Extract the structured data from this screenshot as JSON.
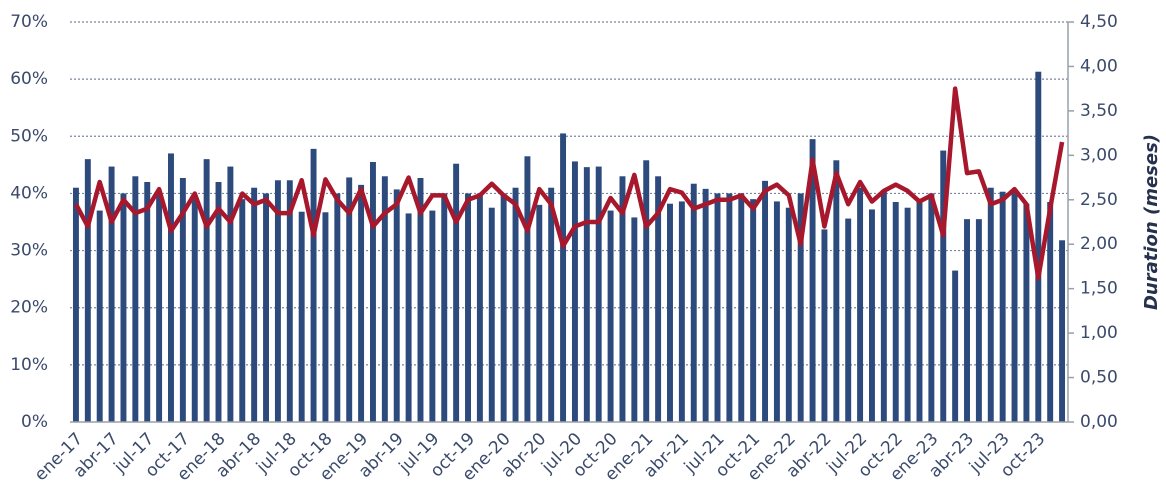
{
  "chart_data": {
    "type": "combo",
    "y2label": "Duration (meses)",
    "categories": [
      "ene-17",
      null,
      null,
      "abr-17",
      null,
      null,
      "jul-17",
      null,
      null,
      "oct-17",
      null,
      null,
      "ene-18",
      null,
      null,
      "abr-18",
      null,
      null,
      "jul-18",
      null,
      null,
      "oct-18",
      null,
      null,
      "ene-19",
      null,
      null,
      "abr-19",
      null,
      null,
      "jul-19",
      null,
      null,
      "oct-19",
      null,
      null,
      "ene-20",
      null,
      null,
      "abr-20",
      null,
      null,
      "jul-20",
      null,
      null,
      "oct-20",
      null,
      null,
      "ene-21",
      null,
      null,
      "abr-21",
      null,
      null,
      "jul-21",
      null,
      null,
      "oct-21",
      null,
      null,
      "ene-22",
      null,
      null,
      "abr-22",
      null,
      null,
      "jul-22",
      null,
      null,
      "oct-22",
      null,
      null,
      "ene-23",
      null,
      null,
      "abr-23",
      null,
      null,
      "jul-23",
      null,
      null,
      "oct-23",
      null,
      null
    ],
    "series": [
      {
        "type": "bar",
        "color": "#2d4a7c",
        "values": [
          41,
          46,
          37,
          44.7,
          40,
          43,
          42,
          40.5,
          47,
          42.7,
          39,
          46,
          42,
          44.7,
          39,
          41,
          40,
          42.3,
          42.3,
          36.8,
          47.8,
          36.7,
          40,
          42.8,
          41.5,
          45.5,
          43,
          40.7,
          36.5,
          42.7,
          37,
          40,
          45.2,
          40,
          40,
          37.5,
          40,
          41,
          46.5,
          38,
          41,
          50.5,
          45.6,
          44.6,
          44.7,
          37,
          43,
          35.8,
          45.8,
          43,
          38.2,
          38.6,
          41.7,
          40.8,
          40,
          40,
          40,
          39,
          42.2,
          38.6,
          37.5,
          40,
          49.5,
          33.7,
          45.8,
          35.6,
          41,
          37.2,
          40.6,
          38.5,
          37.5,
          38.7,
          40,
          47.5,
          26.5,
          35.5,
          35.5,
          41,
          40.3,
          40.5,
          38.2,
          61.3,
          38.5,
          31.8
        ]
      },
      {
        "type": "line",
        "axis": "y2",
        "color": "#a8182c",
        "values": [
          2.45,
          2.2,
          2.7,
          2.25,
          2.5,
          2.35,
          2.4,
          2.62,
          2.15,
          2.35,
          2.57,
          2.2,
          2.4,
          2.25,
          2.57,
          2.45,
          2.5,
          2.35,
          2.35,
          2.72,
          2.1,
          2.73,
          2.5,
          2.35,
          2.62,
          2.2,
          2.35,
          2.45,
          2.75,
          2.35,
          2.55,
          2.55,
          2.25,
          2.5,
          2.55,
          2.68,
          2.55,
          2.45,
          2.15,
          2.62,
          2.45,
          1.98,
          2.2,
          2.25,
          2.25,
          2.52,
          2.35,
          2.78,
          2.2,
          2.35,
          2.62,
          2.58,
          2.4,
          2.45,
          2.5,
          2.5,
          2.55,
          2.4,
          2.6,
          2.67,
          2.55,
          2.0,
          2.95,
          2.2,
          2.8,
          2.45,
          2.7,
          2.48,
          2.6,
          2.67,
          2.6,
          2.48,
          2.55,
          2.1,
          3.75,
          2.8,
          2.82,
          2.45,
          2.5,
          2.62,
          2.45,
          1.62,
          2.4,
          3.15
        ]
      }
    ],
    "ylim": [
      0,
      70
    ],
    "yticks": [
      {
        "value": 0,
        "label": "0%"
      },
      {
        "value": 10,
        "label": "10%"
      },
      {
        "value": 20,
        "label": "20%"
      },
      {
        "value": 30,
        "label": "30%"
      },
      {
        "value": 40,
        "label": "40%"
      },
      {
        "value": 50,
        "label": "50%"
      },
      {
        "value": 60,
        "label": "60%"
      },
      {
        "value": 70,
        "label": "70%"
      }
    ],
    "y2lim": [
      0,
      4.5
    ],
    "y2ticks": [
      {
        "value": 0,
        "label": "0,00"
      },
      {
        "value": 0.5,
        "label": "0,50"
      },
      {
        "value": 1,
        "label": "1,00"
      },
      {
        "value": 1.5,
        "label": "1,50"
      },
      {
        "value": 2,
        "label": "2,00"
      },
      {
        "value": 2.5,
        "label": "2,50"
      },
      {
        "value": 3,
        "label": "3,00"
      },
      {
        "value": 3.5,
        "label": "3,50"
      },
      {
        "value": 4,
        "label": "4,00"
      },
      {
        "value": 4.5,
        "label": "4,50"
      }
    ],
    "grid": true
  }
}
